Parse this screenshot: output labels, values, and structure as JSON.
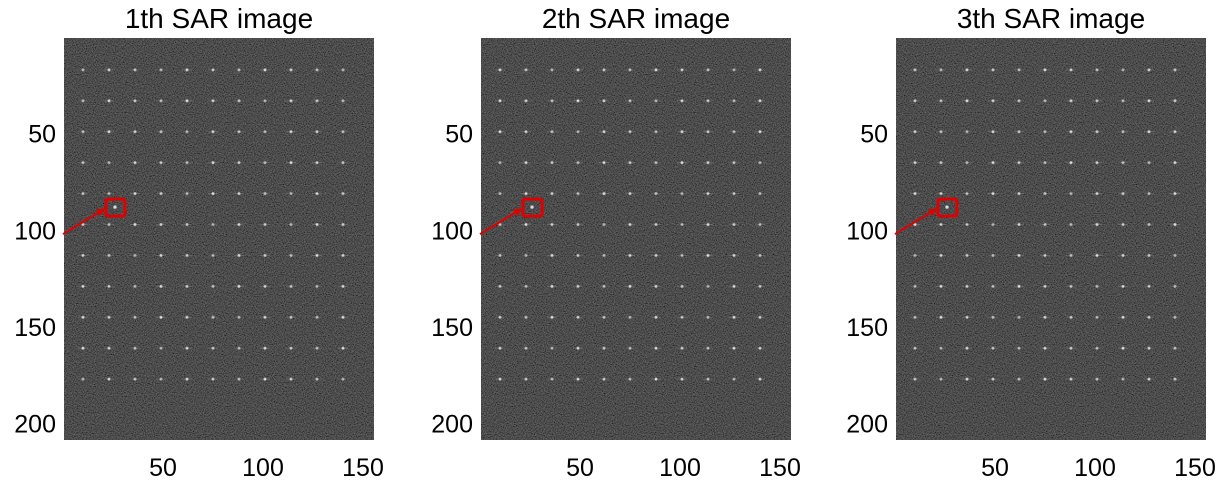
{
  "chart_data": [
    {
      "type": "heatmap",
      "title": "1th SAR image",
      "xlabel": "",
      "ylabel": "",
      "xlim": [
        0.5,
        155.5
      ],
      "ylim": [
        0.5,
        208.5
      ],
      "y_direction": "reversed",
      "x_ticks": [
        50,
        100,
        150
      ],
      "y_ticks": [
        50,
        100,
        150,
        200
      ],
      "colormap": "gray",
      "grid": false,
      "point_targets": {
        "x": [
          10,
          23,
          36,
          49,
          62,
          75,
          88,
          101,
          114,
          127,
          140
        ],
        "y": [
          17,
          33,
          49,
          65,
          81,
          97,
          113,
          129,
          145,
          161,
          177
        ]
      },
      "highlighted_target": {
        "x": 26,
        "y": 88
      },
      "highlight_color": "#e00000"
    },
    {
      "type": "heatmap",
      "title": "2th SAR image",
      "xlabel": "",
      "ylabel": "",
      "xlim": [
        0.5,
        155.5
      ],
      "ylim": [
        0.5,
        208.5
      ],
      "y_direction": "reversed",
      "x_ticks": [
        50,
        100,
        150
      ],
      "y_ticks": [
        50,
        100,
        150,
        200
      ],
      "colormap": "gray",
      "grid": false,
      "point_targets": {
        "x": [
          10,
          23,
          36,
          49,
          62,
          75,
          88,
          101,
          114,
          127,
          140
        ],
        "y": [
          17,
          33,
          49,
          65,
          81,
          97,
          113,
          129,
          145,
          161,
          177
        ]
      },
      "highlighted_target": {
        "x": 26,
        "y": 88
      },
      "highlight_color": "#e00000"
    },
    {
      "type": "heatmap",
      "title": "3th SAR image",
      "xlabel": "",
      "ylabel": "",
      "xlim": [
        0.5,
        155.5
      ],
      "ylim": [
        0.5,
        208.5
      ],
      "y_direction": "reversed",
      "x_ticks": [
        50,
        100,
        150
      ],
      "y_ticks": [
        50,
        100,
        150,
        200
      ],
      "colormap": "gray",
      "grid": false,
      "point_targets": {
        "x": [
          10,
          23,
          36,
          49,
          62,
          75,
          88,
          101,
          114,
          127,
          140
        ],
        "y": [
          17,
          33,
          49,
          65,
          81,
          97,
          113,
          129,
          145,
          161,
          177
        ]
      },
      "highlighted_target": {
        "x": 26,
        "y": 88
      },
      "highlight_color": "#e00000"
    }
  ]
}
